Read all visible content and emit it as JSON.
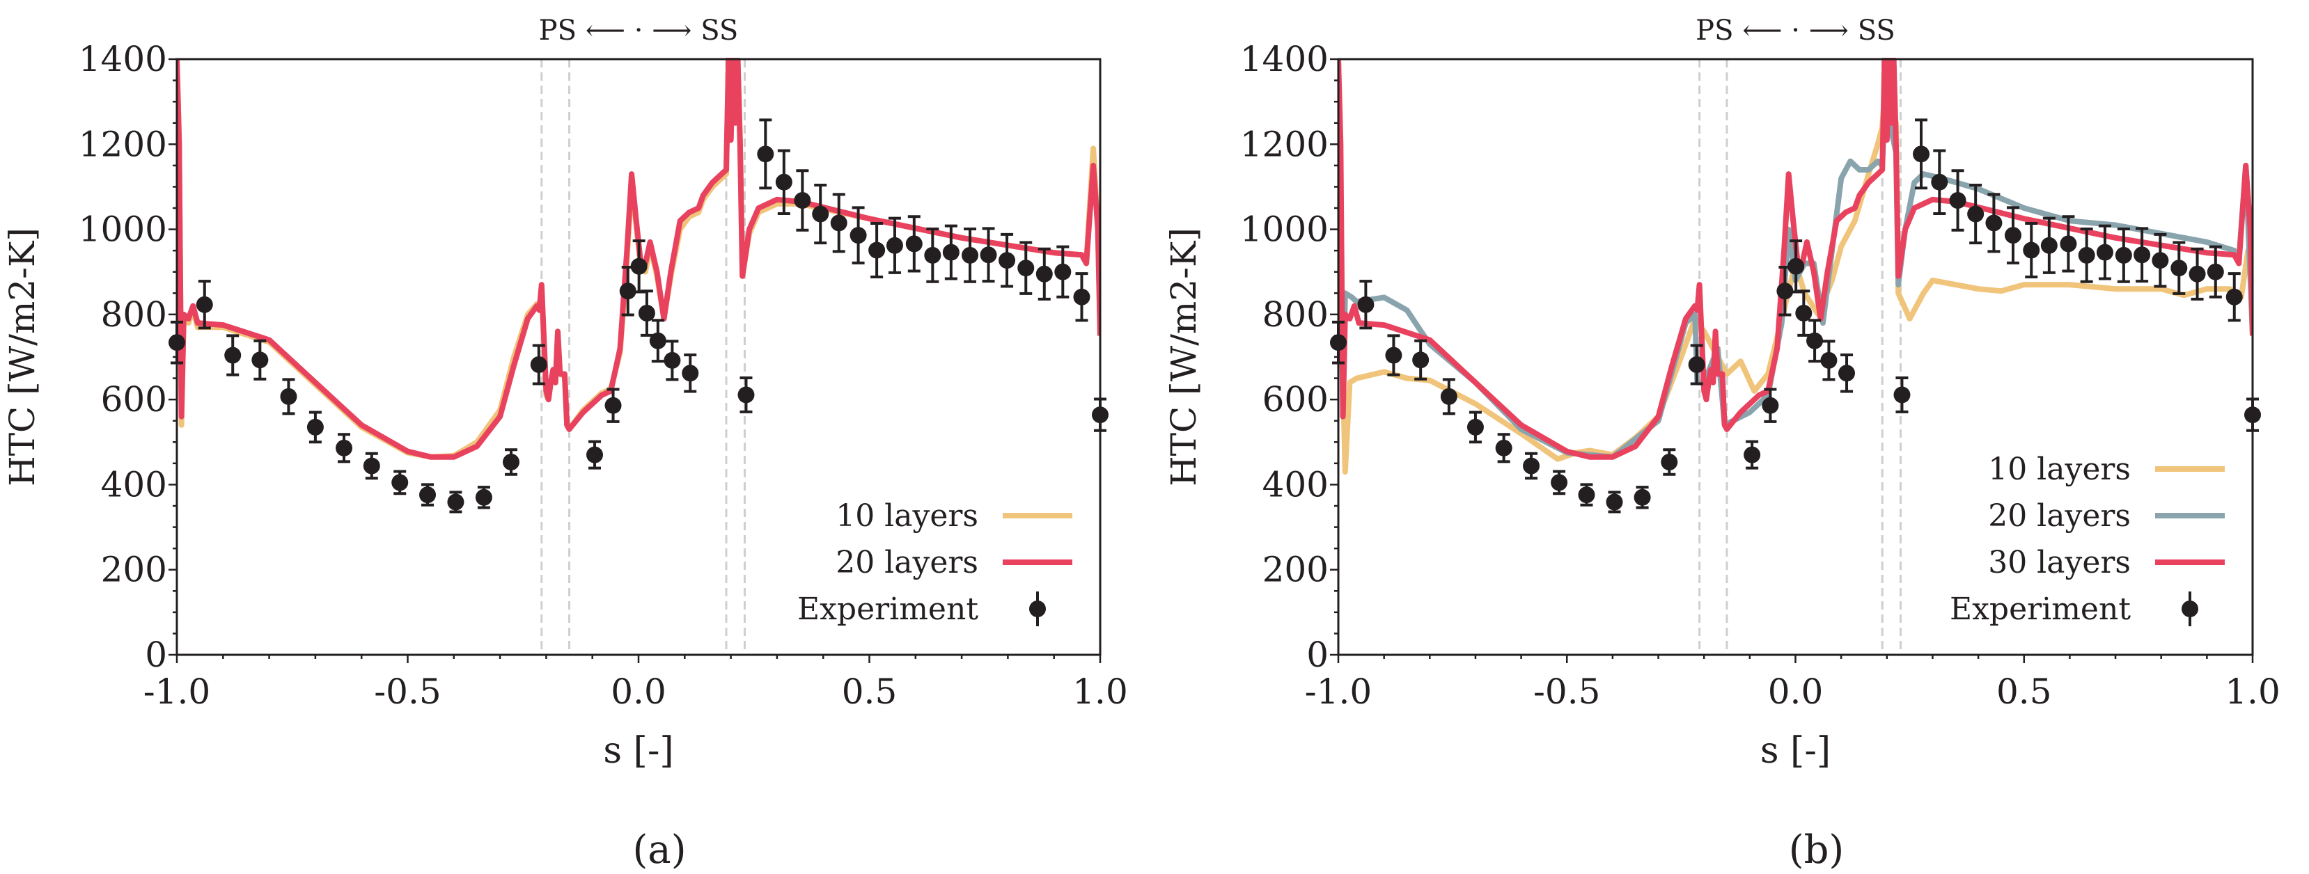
{
  "chart_data": [
    {
      "type": "line",
      "caption": "(a)",
      "header": "PS ⟵ · ⟶ SS",
      "xlabel": "s [-]",
      "ylabel": "HTC [W/m2-K]",
      "xlim": [
        -1.0,
        1.0
      ],
      "ylim": [
        0,
        1400
      ],
      "xticks": [
        "-1.0",
        "-0.5",
        "0.0",
        "0.5",
        "1.0"
      ],
      "yticks": [
        "0",
        "200",
        "400",
        "600",
        "800",
        "1000",
        "1200",
        "1400"
      ],
      "grid": false,
      "legend_position": "bottom-right",
      "vlines": [
        -0.21,
        -0.15,
        0.19,
        0.23
      ],
      "series": [
        {
          "name": "10 layers",
          "color": "#f0c47a",
          "x": [
            -1.0,
            -0.995,
            -0.99,
            -0.985,
            -0.975,
            -0.965,
            -0.955,
            -0.9,
            -0.8,
            -0.7,
            -0.6,
            -0.5,
            -0.45,
            -0.4,
            -0.35,
            -0.3,
            -0.27,
            -0.24,
            -0.22,
            -0.215,
            -0.21,
            -0.2,
            -0.195,
            -0.19,
            -0.185,
            -0.18,
            -0.175,
            -0.17,
            -0.16,
            -0.155,
            -0.15,
            -0.12,
            -0.08,
            -0.06,
            -0.04,
            -0.025,
            -0.015,
            -0.005,
            0.005,
            0.015,
            0.025,
            0.04,
            0.055,
            0.07,
            0.09,
            0.11,
            0.13,
            0.14,
            0.16,
            0.18,
            0.19,
            0.195,
            0.2,
            0.205,
            0.21,
            0.215,
            0.22,
            0.225,
            0.24,
            0.26,
            0.3,
            0.35,
            0.5,
            0.7,
            0.9,
            0.96,
            0.97,
            0.985,
            0.995,
            1.0
          ],
          "y": [
            1400,
            1200,
            540,
            790,
            780,
            810,
            770,
            770,
            735,
            635,
            535,
            475,
            465,
            468,
            500,
            575,
            700,
            800,
            825,
            810,
            860,
            610,
            600,
            640,
            665,
            640,
            750,
            660,
            655,
            540,
            530,
            575,
            615,
            625,
            710,
            930,
            1110,
            1010,
            910,
            900,
            960,
            890,
            790,
            890,
            1000,
            1030,
            1040,
            1070,
            1100,
            1120,
            1130,
            1400,
            1210,
            1400,
            1250,
            1400,
            1200,
            890,
            990,
            1040,
            1060,
            1060,
            1025,
            980,
            945,
            940,
            925,
            1190,
            1000,
            750
          ]
        },
        {
          "name": "20 layers",
          "color": "#e8425e",
          "x": [
            -1.0,
            -0.995,
            -0.99,
            -0.985,
            -0.975,
            -0.965,
            -0.955,
            -0.9,
            -0.8,
            -0.7,
            -0.6,
            -0.5,
            -0.45,
            -0.4,
            -0.35,
            -0.3,
            -0.27,
            -0.24,
            -0.22,
            -0.215,
            -0.21,
            -0.2,
            -0.195,
            -0.19,
            -0.185,
            -0.18,
            -0.175,
            -0.17,
            -0.16,
            -0.155,
            -0.15,
            -0.12,
            -0.08,
            -0.06,
            -0.04,
            -0.025,
            -0.015,
            -0.005,
            0.005,
            0.015,
            0.025,
            0.04,
            0.055,
            0.07,
            0.09,
            0.11,
            0.13,
            0.14,
            0.16,
            0.18,
            0.19,
            0.195,
            0.2,
            0.205,
            0.21,
            0.215,
            0.22,
            0.225,
            0.24,
            0.26,
            0.3,
            0.35,
            0.5,
            0.7,
            0.9,
            0.96,
            0.97,
            0.985,
            0.995,
            1.0
          ],
          "y": [
            1400,
            1200,
            560,
            800,
            790,
            820,
            780,
            775,
            740,
            640,
            540,
            478,
            465,
            465,
            490,
            560,
            680,
            790,
            820,
            810,
            870,
            620,
            600,
            640,
            670,
            640,
            760,
            660,
            660,
            540,
            530,
            570,
            610,
            620,
            720,
            950,
            1130,
            1020,
            920,
            920,
            970,
            900,
            790,
            900,
            1020,
            1040,
            1050,
            1080,
            1110,
            1130,
            1140,
            1400,
            1210,
            1400,
            1250,
            1400,
            1200,
            890,
            1000,
            1050,
            1070,
            1065,
            1025,
            980,
            945,
            940,
            920,
            1150,
            1000,
            750
          ]
        }
      ],
      "experiment": {
        "name": "Experiment",
        "x": [
          -1.0,
          -0.94,
          -0.879,
          -0.82,
          -0.758,
          -0.7,
          -0.638,
          -0.578,
          -0.517,
          -0.457,
          -0.396,
          -0.335,
          -0.276,
          -0.216,
          -0.095,
          -0.055,
          -0.023,
          0.001,
          0.018,
          0.042,
          0.073,
          0.112,
          0.233,
          0.275,
          0.315,
          0.355,
          0.394,
          0.434,
          0.476,
          0.516,
          0.555,
          0.597,
          0.637,
          0.677,
          0.718,
          0.758,
          0.798,
          0.839,
          0.879,
          0.919,
          0.96,
          1.0
        ],
        "y": [
          734,
          823,
          704,
          693,
          607,
          535,
          486,
          444,
          405,
          376,
          359,
          370,
          453,
          682,
          470,
          586,
          855,
          913,
          803,
          738,
          692,
          662,
          611,
          1177,
          1111,
          1068,
          1036,
          1015,
          986,
          951,
          962,
          966,
          939,
          946,
          939,
          940,
          927,
          909,
          895,
          900,
          841,
          564
        ],
        "err": [
          48,
          55,
          46,
          45,
          40,
          35,
          32,
          29,
          26,
          24,
          23,
          24,
          29,
          45,
          31,
          38,
          56,
          60,
          52,
          48,
          45,
          43,
          40,
          80,
          74,
          70,
          68,
          67,
          65,
          63,
          64,
          64,
          62,
          62,
          62,
          62,
          61,
          60,
          59,
          59,
          55,
          37
        ]
      }
    },
    {
      "type": "line",
      "caption": "(b)",
      "header": "PS ⟵ · ⟶ SS",
      "xlabel": "s [-]",
      "ylabel": "HTC [W/m2-K]",
      "xlim": [
        -1.0,
        1.0
      ],
      "ylim": [
        0,
        1400
      ],
      "xticks": [
        "-1.0",
        "-0.5",
        "0.0",
        "0.5",
        "1.0"
      ],
      "yticks": [
        "0",
        "200",
        "400",
        "600",
        "800",
        "1000",
        "1200",
        "1400"
      ],
      "grid": false,
      "legend_position": "bottom-right",
      "vlines": [
        -0.21,
        -0.15,
        0.19,
        0.23
      ],
      "series": [
        {
          "name": "10 layers",
          "color": "#f0c47a",
          "x": [
            -1.0,
            -0.995,
            -0.985,
            -0.975,
            -0.96,
            -0.9,
            -0.85,
            -0.8,
            -0.7,
            -0.6,
            -0.52,
            -0.48,
            -0.45,
            -0.4,
            -0.35,
            -0.3,
            -0.25,
            -0.22,
            -0.2,
            -0.15,
            -0.12,
            -0.09,
            -0.06,
            -0.03,
            0.0,
            0.02,
            0.05,
            0.08,
            0.1,
            0.13,
            0.16,
            0.18,
            0.19,
            0.2,
            0.21,
            0.22,
            0.225,
            0.25,
            0.28,
            0.3,
            0.35,
            0.4,
            0.45,
            0.5,
            0.6,
            0.7,
            0.8,
            0.85,
            0.9,
            0.95,
            0.975,
            0.99,
            1.0
          ],
          "y": [
            1400,
            900,
            430,
            640,
            650,
            665,
            650,
            645,
            590,
            520,
            460,
            475,
            480,
            470,
            510,
            560,
            700,
            790,
            760,
            660,
            690,
            620,
            660,
            790,
            920,
            850,
            800,
            880,
            960,
            1020,
            1130,
            1200,
            1240,
            1400,
            1300,
            1250,
            850,
            790,
            850,
            880,
            870,
            860,
            855,
            870,
            870,
            860,
            860,
            845,
            860,
            860,
            840,
            950,
            850
          ]
        },
        {
          "name": "20 layers",
          "color": "#8aa4ad",
          "x": [
            -1.0,
            -0.99,
            -0.985,
            -0.97,
            -0.96,
            -0.9,
            -0.85,
            -0.8,
            -0.7,
            -0.6,
            -0.5,
            -0.4,
            -0.3,
            -0.24,
            -0.22,
            -0.215,
            -0.2,
            -0.17,
            -0.155,
            -0.1,
            -0.06,
            -0.03,
            -0.015,
            0.0,
            0.02,
            0.04,
            0.06,
            0.08,
            0.1,
            0.12,
            0.14,
            0.16,
            0.18,
            0.19,
            0.2,
            0.21,
            0.22,
            0.225,
            0.24,
            0.26,
            0.28,
            0.32,
            0.4,
            0.5,
            0.6,
            0.7,
            0.8,
            0.85,
            0.9,
            0.96,
            0.97,
            0.985,
            1.0
          ],
          "y": [
            1400,
            560,
            850,
            840,
            830,
            840,
            810,
            730,
            640,
            530,
            475,
            465,
            550,
            780,
            800,
            640,
            640,
            720,
            540,
            570,
            610,
            780,
            1000,
            880,
            920,
            920,
            780,
            950,
            1120,
            1160,
            1140,
            1140,
            1160,
            1150,
            1400,
            1230,
            1180,
            870,
            1000,
            1110,
            1130,
            1120,
            1095,
            1050,
            1020,
            1010,
            990,
            980,
            970,
            950,
            930,
            1150,
            750
          ]
        },
        {
          "name": "30 layers",
          "color": "#e8425e",
          "x": [
            -1.0,
            -0.995,
            -0.99,
            -0.985,
            -0.975,
            -0.965,
            -0.955,
            -0.9,
            -0.8,
            -0.7,
            -0.6,
            -0.5,
            -0.45,
            -0.4,
            -0.35,
            -0.3,
            -0.27,
            -0.24,
            -0.22,
            -0.215,
            -0.21,
            -0.2,
            -0.195,
            -0.19,
            -0.185,
            -0.18,
            -0.175,
            -0.17,
            -0.16,
            -0.155,
            -0.15,
            -0.12,
            -0.08,
            -0.06,
            -0.04,
            -0.025,
            -0.015,
            -0.005,
            0.005,
            0.015,
            0.025,
            0.04,
            0.055,
            0.07,
            0.09,
            0.11,
            0.13,
            0.14,
            0.16,
            0.18,
            0.19,
            0.195,
            0.2,
            0.205,
            0.21,
            0.215,
            0.22,
            0.225,
            0.24,
            0.26,
            0.3,
            0.35,
            0.5,
            0.7,
            0.9,
            0.96,
            0.97,
            0.985,
            0.995,
            1.0
          ],
          "y": [
            1400,
            1200,
            560,
            800,
            790,
            820,
            780,
            775,
            740,
            640,
            540,
            478,
            465,
            465,
            490,
            560,
            680,
            790,
            820,
            810,
            870,
            620,
            600,
            640,
            670,
            640,
            760,
            660,
            660,
            540,
            530,
            570,
            610,
            620,
            720,
            950,
            1130,
            1020,
            920,
            920,
            970,
            900,
            790,
            900,
            1020,
            1040,
            1050,
            1080,
            1110,
            1130,
            1140,
            1400,
            1210,
            1400,
            1250,
            1400,
            1200,
            890,
            1000,
            1050,
            1070,
            1065,
            1025,
            980,
            945,
            940,
            920,
            1150,
            1000,
            750
          ]
        }
      ],
      "experiment": {
        "name": "Experiment",
        "x": [
          -1.0,
          -0.94,
          -0.879,
          -0.82,
          -0.758,
          -0.7,
          -0.638,
          -0.578,
          -0.517,
          -0.457,
          -0.396,
          -0.335,
          -0.276,
          -0.216,
          -0.095,
          -0.055,
          -0.023,
          0.001,
          0.018,
          0.042,
          0.073,
          0.112,
          0.233,
          0.275,
          0.315,
          0.355,
          0.394,
          0.434,
          0.476,
          0.516,
          0.555,
          0.597,
          0.637,
          0.677,
          0.718,
          0.758,
          0.798,
          0.839,
          0.879,
          0.919,
          0.96,
          1.0
        ],
        "y": [
          734,
          823,
          704,
          693,
          607,
          535,
          486,
          444,
          405,
          376,
          359,
          370,
          453,
          682,
          470,
          586,
          855,
          913,
          803,
          738,
          692,
          662,
          611,
          1177,
          1111,
          1068,
          1036,
          1015,
          986,
          951,
          962,
          966,
          939,
          946,
          939,
          940,
          927,
          909,
          895,
          900,
          841,
          564
        ],
        "err": [
          48,
          55,
          46,
          45,
          40,
          35,
          32,
          29,
          26,
          24,
          23,
          24,
          29,
          45,
          31,
          38,
          56,
          60,
          52,
          48,
          45,
          43,
          40,
          80,
          74,
          70,
          68,
          67,
          65,
          63,
          64,
          64,
          62,
          62,
          62,
          62,
          61,
          60,
          59,
          59,
          55,
          37
        ]
      }
    }
  ]
}
